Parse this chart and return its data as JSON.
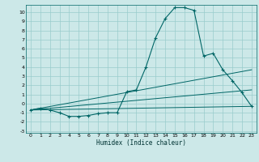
{
  "xlabel": "Humidex (Indice chaleur)",
  "background_color": "#cce8e8",
  "grid_color": "#99cccc",
  "line_color": "#006666",
  "xlim": [
    -0.5,
    23.5
  ],
  "ylim": [
    -3.2,
    10.8
  ],
  "xticks": [
    0,
    1,
    2,
    3,
    4,
    5,
    6,
    7,
    8,
    9,
    10,
    11,
    12,
    13,
    14,
    15,
    16,
    17,
    18,
    19,
    20,
    21,
    22,
    23
  ],
  "yticks": [
    -3,
    -2,
    -1,
    0,
    1,
    2,
    3,
    4,
    5,
    6,
    7,
    8,
    9,
    10
  ],
  "curve1_x": [
    0,
    1,
    2,
    3,
    4,
    5,
    6,
    7,
    8,
    9,
    10,
    11,
    12,
    13,
    14,
    15,
    16,
    17,
    18,
    19,
    20,
    21,
    22,
    23
  ],
  "curve1_y": [
    -0.7,
    -0.5,
    -0.7,
    -1.0,
    -1.4,
    -1.4,
    -1.3,
    -1.1,
    -1.0,
    -1.0,
    1.3,
    1.5,
    4.0,
    7.2,
    9.3,
    10.5,
    10.5,
    10.2,
    5.2,
    5.5,
    3.7,
    2.5,
    1.2,
    -0.3
  ],
  "line1_x": [
    0,
    23
  ],
  "line1_y": [
    -0.7,
    -0.3
  ],
  "line2_x": [
    0,
    23
  ],
  "line2_y": [
    -0.7,
    3.7
  ],
  "line3_x": [
    0,
    23
  ],
  "line3_y": [
    -0.7,
    1.5
  ]
}
